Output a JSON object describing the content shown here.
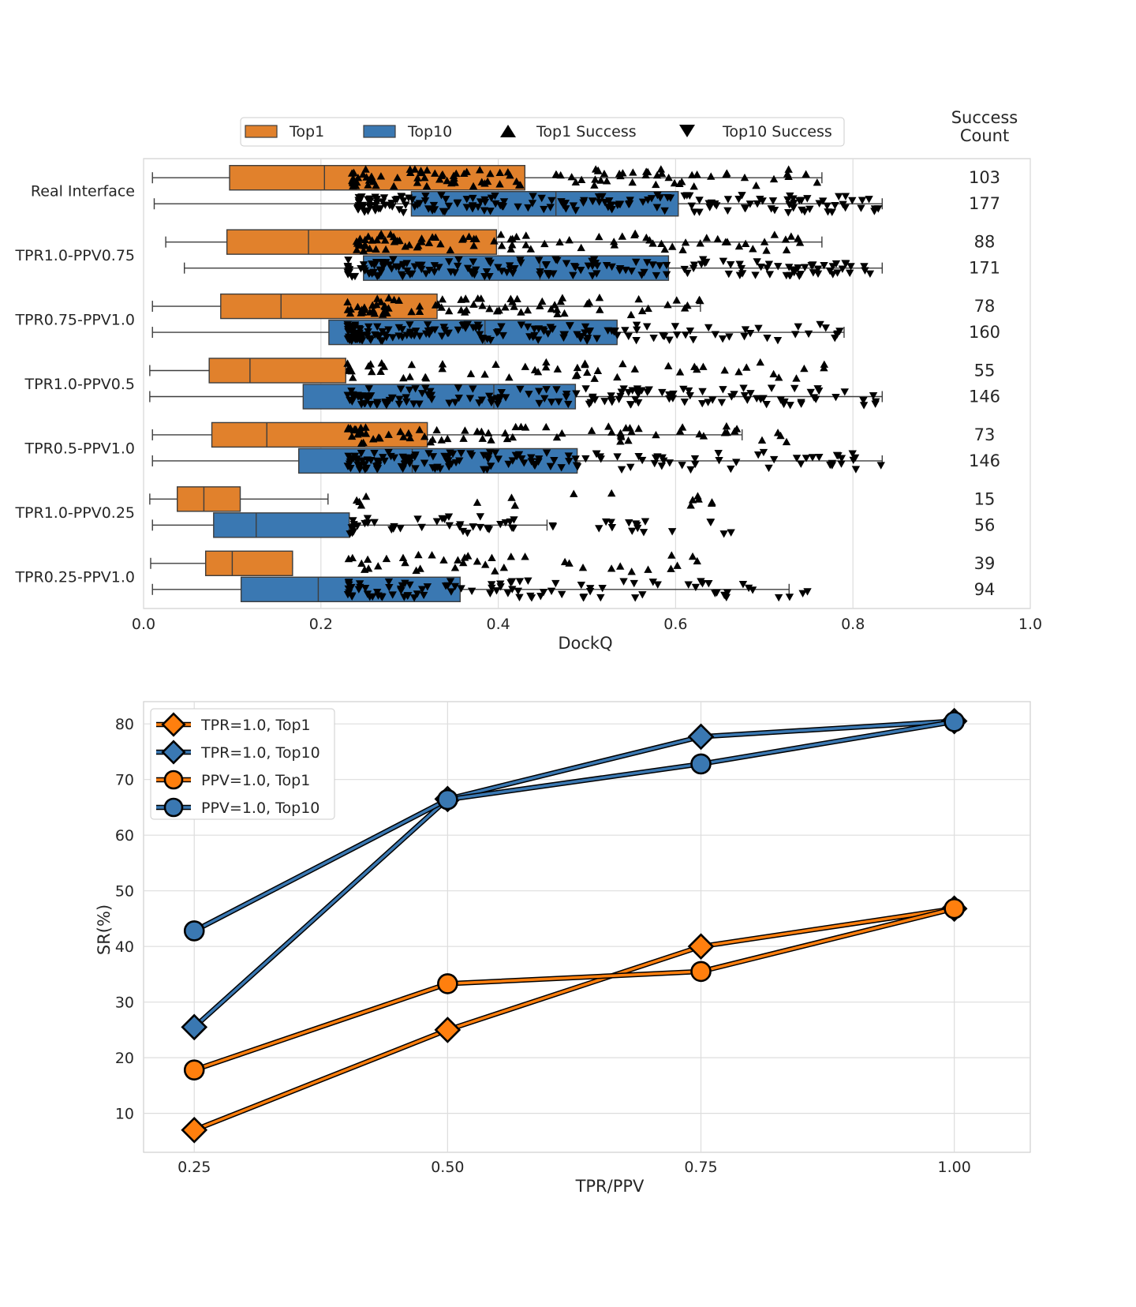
{
  "colors": {
    "top1": "#ff7f0e",
    "top1_box": "#e1812c",
    "top10": "#3a78b2",
    "top10_line": "#2e6aa6",
    "marker": "#000000",
    "grid": "#dddddd",
    "axes_edge": "#cfcfcf"
  },
  "chart_data": [
    {
      "type": "boxplot",
      "orientation": "horizontal",
      "xlabel": "DockQ",
      "xlim": [
        0.0,
        1.0
      ],
      "xticks": [
        "0.0",
        "0.2",
        "0.4",
        "0.6",
        "0.8",
        "1.0"
      ],
      "legend": {
        "placement": "top",
        "entries": [
          {
            "label": "Top1",
            "kind": "box",
            "color": "#e1812c"
          },
          {
            "label": "Top10",
            "kind": "box",
            "color": "#3a78b2"
          },
          {
            "label": "Top1 Success",
            "kind": "triangle-up"
          },
          {
            "label": "Top10 Success",
            "kind": "triangle-down"
          }
        ]
      },
      "success_count_header": [
        "Success",
        "Count"
      ],
      "categories": [
        "Real Interface",
        "TPR1.0-PPV0.75",
        "TPR0.75-PPV1.0",
        "TPR1.0-PPV0.5",
        "TPR0.5-PPV1.0",
        "TPR1.0-PPV0.25",
        "TPR0.25-PPV1.0"
      ],
      "series": [
        {
          "name": "Top1",
          "success_marker": "triangle-up",
          "boxes": [
            {
              "whislo": 0.01,
              "q1": 0.097,
              "med": 0.204,
              "q3": 0.43,
              "whishi": 0.765,
              "success_count": 103,
              "success_range": [
                0.235,
                0.765
              ]
            },
            {
              "whislo": 0.025,
              "q1": 0.094,
              "med": 0.186,
              "q3": 0.398,
              "whishi": 0.765,
              "success_count": 88,
              "success_range": [
                0.24,
                0.75
              ]
            },
            {
              "whislo": 0.01,
              "q1": 0.087,
              "med": 0.155,
              "q3": 0.331,
              "whishi": 0.628,
              "success_count": 78,
              "success_range": [
                0.23,
                0.628
              ]
            },
            {
              "whislo": 0.007,
              "q1": 0.074,
              "med": 0.12,
              "q3": 0.228,
              "whishi": 0.228,
              "success_count": 55,
              "success_range": [
                0.23,
                0.775
              ]
            },
            {
              "whislo": 0.01,
              "q1": 0.077,
              "med": 0.139,
              "q3": 0.32,
              "whishi": 0.675,
              "success_count": 73,
              "success_range": [
                0.23,
                0.73
              ]
            },
            {
              "whislo": 0.007,
              "q1": 0.038,
              "med": 0.068,
              "q3": 0.109,
              "whishi": 0.208,
              "success_count": 15,
              "success_range": [
                0.24,
                0.665
              ]
            },
            {
              "whislo": 0.008,
              "q1": 0.07,
              "med": 0.1,
              "q3": 0.168,
              "whishi": 0.168,
              "success_count": 39,
              "success_range": [
                0.23,
                0.63
              ]
            }
          ]
        },
        {
          "name": "Top10",
          "success_marker": "triangle-down",
          "boxes": [
            {
              "whislo": 0.012,
              "q1": 0.302,
              "med": 0.465,
              "q3": 0.603,
              "whishi": 0.833,
              "success_count": 177,
              "success_range": [
                0.24,
                0.833
              ]
            },
            {
              "whislo": 0.046,
              "q1": 0.248,
              "med": 0.447,
              "q3": 0.592,
              "whishi": 0.833,
              "success_count": 171,
              "success_range": [
                0.23,
                0.833
              ]
            },
            {
              "whislo": 0.01,
              "q1": 0.209,
              "med": 0.385,
              "q3": 0.534,
              "whishi": 0.79,
              "success_count": 160,
              "success_range": [
                0.23,
                0.79
              ]
            },
            {
              "whislo": 0.007,
              "q1": 0.18,
              "med": 0.395,
              "q3": 0.487,
              "whishi": 0.833,
              "success_count": 146,
              "success_range": [
                0.23,
                0.833
              ]
            },
            {
              "whislo": 0.01,
              "q1": 0.175,
              "med": 0.303,
              "q3": 0.489,
              "whishi": 0.833,
              "success_count": 146,
              "success_range": [
                0.23,
                0.833
              ]
            },
            {
              "whislo": 0.01,
              "q1": 0.079,
              "med": 0.127,
              "q3": 0.232,
              "whishi": 0.455,
              "success_count": 56,
              "success_range": [
                0.23,
                0.675
              ]
            },
            {
              "whislo": 0.01,
              "q1": 0.11,
              "med": 0.197,
              "q3": 0.357,
              "whishi": 0.728,
              "success_count": 94,
              "success_range": [
                0.23,
                0.765
              ]
            }
          ]
        }
      ]
    },
    {
      "type": "line",
      "xlabel": "TPR/PPV",
      "ylabel": "SR(%)",
      "x": [
        0.25,
        0.5,
        0.75,
        1.0
      ],
      "xticks": [
        "0.25",
        "0.50",
        "0.75",
        "1.00"
      ],
      "yticks": [
        "10",
        "20",
        "30",
        "40",
        "50",
        "60",
        "70",
        "80"
      ],
      "xlim": [
        0.2,
        1.075
      ],
      "ylim": [
        3,
        84
      ],
      "grid": true,
      "legend": {
        "placement": "top-left"
      },
      "series": [
        {
          "name": "TPR=1.0, Top1",
          "marker": "diamond",
          "color": "#ff7f0e",
          "values": [
            7.0,
            25.0,
            40.0,
            46.8
          ]
        },
        {
          "name": "TPR=1.0, Top10",
          "marker": "diamond",
          "color": "#3a78b2",
          "values": [
            25.5,
            66.5,
            77.7,
            80.5
          ]
        },
        {
          "name": "PPV=1.0, Top1",
          "marker": "circle",
          "color": "#ff7f0e",
          "values": [
            17.8,
            33.3,
            35.5,
            46.8
          ]
        },
        {
          "name": "PPV=1.0, Top10",
          "marker": "circle",
          "color": "#3a78b2",
          "values": [
            42.8,
            66.4,
            72.8,
            80.4
          ]
        }
      ]
    }
  ]
}
